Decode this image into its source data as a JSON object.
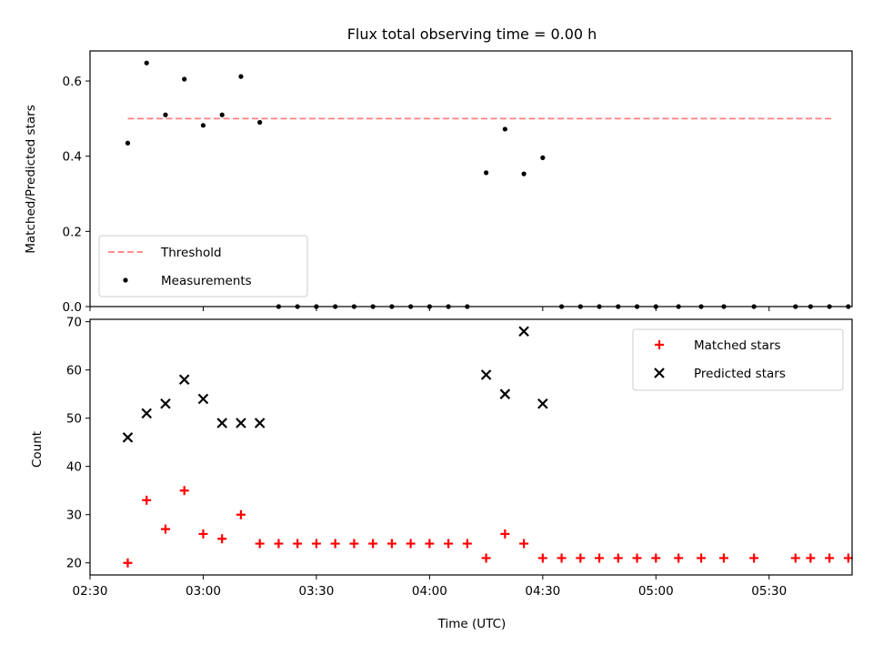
{
  "figure": {
    "title": "Flux total observing time = 0.00 h",
    "xlabel": "Time (UTC)",
    "xticks": [
      "02:30",
      "03:00",
      "03:30",
      "04:00",
      "04:30",
      "05:00",
      "05:30"
    ]
  },
  "chart_data": [
    {
      "type": "scatter",
      "ylabel": "Matched/Predicted stars",
      "xlim": [
        "02:30",
        "05:52"
      ],
      "ylim": [
        0.0,
        0.68
      ],
      "yticks": [
        "0.0",
        "0.2",
        "0.4",
        "0.6"
      ],
      "legend_position": "lower-left",
      "threshold": {
        "name": "Threshold",
        "value": 0.5,
        "x_start": "02:40",
        "x_end": "05:47",
        "color": "#ff7f7f"
      },
      "series": [
        {
          "name": "Measurements",
          "color": "#000000",
          "x": [
            "02:40",
            "02:45",
            "02:50",
            "02:55",
            "03:00",
            "03:05",
            "03:10",
            "03:15",
            "03:20",
            "03:25",
            "03:30",
            "03:35",
            "03:40",
            "03:45",
            "03:50",
            "03:55",
            "04:00",
            "04:05",
            "04:10",
            "04:15",
            "04:20",
            "04:25",
            "04:30",
            "04:35",
            "04:40",
            "04:45",
            "04:50",
            "04:55",
            "05:00",
            "05:06",
            "05:12",
            "05:18",
            "05:26",
            "05:37",
            "05:41",
            "05:46",
            "05:51"
          ],
          "y": [
            0.435,
            0.648,
            0.51,
            0.605,
            0.482,
            0.51,
            0.612,
            0.49,
            0.0,
            0.0,
            0.0,
            0.0,
            0.0,
            0.0,
            0.0,
            0.0,
            0.0,
            0.0,
            0.0,
            0.356,
            0.472,
            0.353,
            0.396,
            0.0,
            0.0,
            0.0,
            0.0,
            0.0,
            0.0,
            0.0,
            0.0,
            0.0,
            0.0,
            0.0,
            0.0,
            0.0,
            0.0
          ]
        }
      ]
    },
    {
      "type": "scatter",
      "ylabel": "Count",
      "xlim": [
        "02:30",
        "05:52"
      ],
      "ylim": [
        17.5,
        70.5
      ],
      "yticks": [
        "20",
        "30",
        "40",
        "50",
        "60",
        "70"
      ],
      "legend_position": "upper-right",
      "series": [
        {
          "name": "Matched stars",
          "marker": "plus",
          "color": "#ff0000",
          "x": [
            "02:40",
            "02:45",
            "02:50",
            "02:55",
            "03:00",
            "03:05",
            "03:10",
            "03:15",
            "03:20",
            "03:25",
            "03:30",
            "03:35",
            "03:40",
            "03:45",
            "03:50",
            "03:55",
            "04:00",
            "04:05",
            "04:10",
            "04:15",
            "04:20",
            "04:25",
            "04:30",
            "04:35",
            "04:40",
            "04:45",
            "04:50",
            "04:55",
            "05:00",
            "05:06",
            "05:12",
            "05:18",
            "05:26",
            "05:37",
            "05:41",
            "05:46",
            "05:51"
          ],
          "y": [
            20,
            33,
            27,
            35,
            26,
            25,
            30,
            24,
            24,
            24,
            24,
            24,
            24,
            24,
            24,
            24,
            24,
            24,
            24,
            21,
            26,
            24,
            21,
            21,
            21,
            21,
            21,
            21,
            21,
            21,
            21,
            21,
            21,
            21,
            21,
            21,
            21
          ]
        },
        {
          "name": "Predicted stars",
          "marker": "x",
          "color": "#000000",
          "x": [
            "02:40",
            "02:45",
            "02:50",
            "02:55",
            "03:00",
            "03:05",
            "03:10",
            "03:15",
            "04:15",
            "04:20",
            "04:25",
            "04:30"
          ],
          "y": [
            46,
            51,
            53,
            58,
            54,
            49,
            49,
            49,
            59,
            55,
            68,
            53
          ]
        }
      ]
    }
  ]
}
